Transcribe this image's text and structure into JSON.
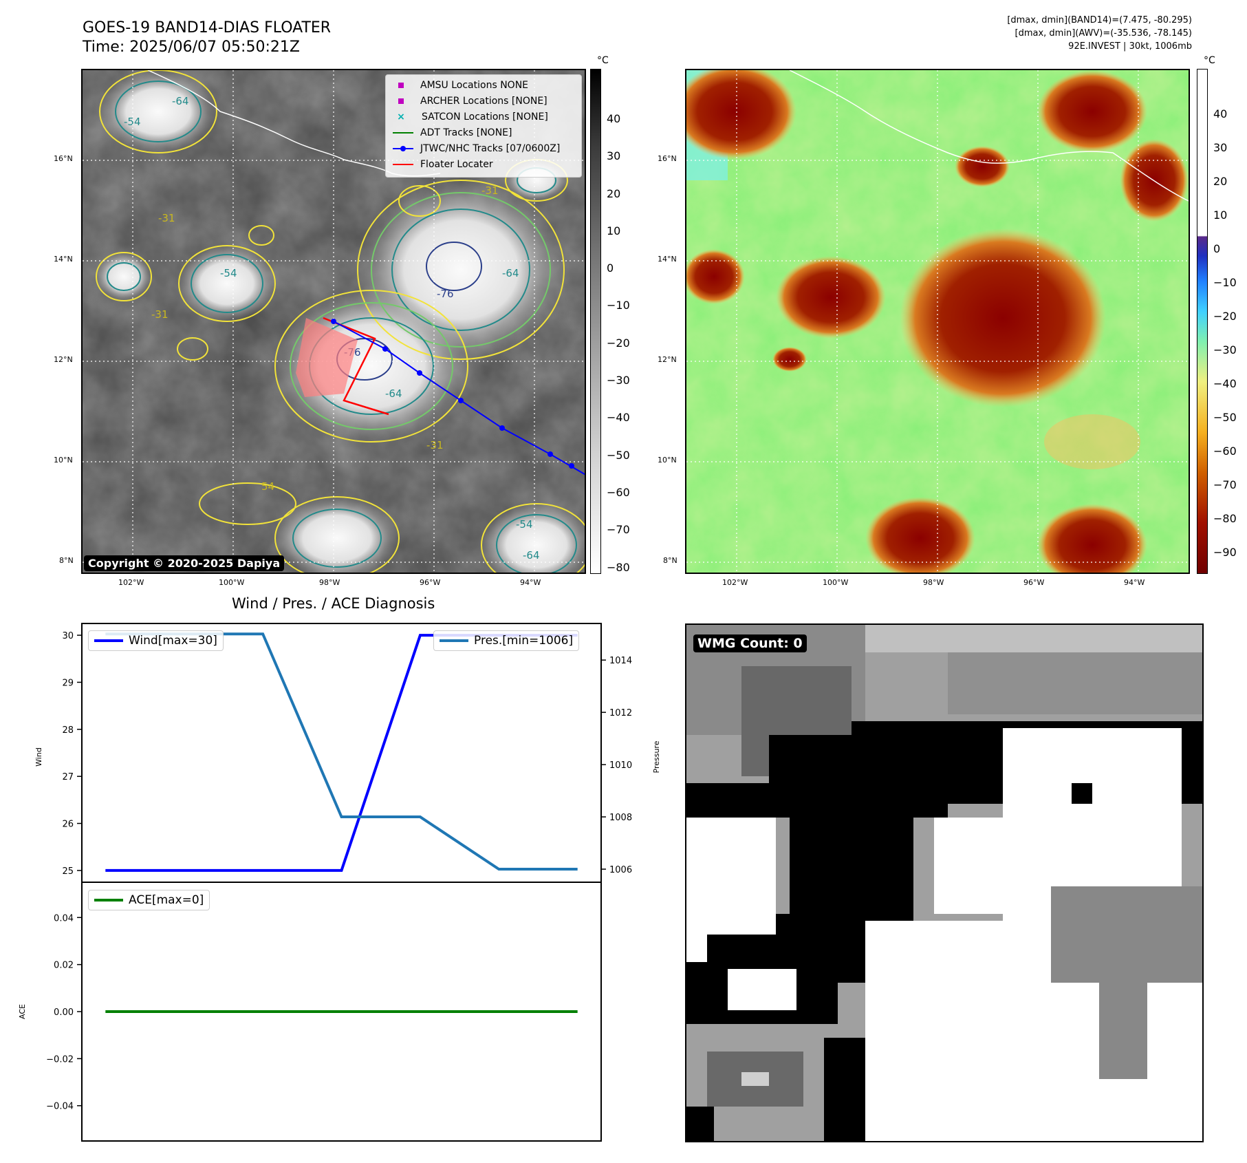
{
  "header": {
    "title_line1": "GOES-19 BAND14-DIAS FLOATER",
    "title_line2": "Time: 2025/06/07 05:50:21Z",
    "right_line1": "[dmax, dmin](BAND14)=(7.475, -80.295)",
    "right_line2": "[dmax, dmin](AWV)=(-35.536, -78.145)",
    "right_line3": "92E.INVEST | 30kt, 1006mb"
  },
  "map": {
    "lat_labels": [
      "16°N",
      "14°N",
      "12°N",
      "10°N",
      "8°N"
    ],
    "lon_labels": [
      "102°W",
      "100°W",
      "98°W",
      "96°W",
      "94°W"
    ],
    "copyright": "Copyright © 2020-2025 Dapiya",
    "contour_labels": [
      "-54",
      "-64",
      "-31",
      "-54",
      "-64",
      "-76",
      "-76",
      "-31",
      "-64",
      "-54",
      "-64",
      "-31",
      "-31",
      "54"
    ],
    "legend": [
      {
        "label": "AMSU Locations NONE",
        "color": "#c000c0",
        "symbol": "square"
      },
      {
        "label": "ARCHER Locations [NONE]",
        "color": "#c000c0",
        "symbol": "square"
      },
      {
        "label": "SATCON Locations [NONE]",
        "color": "#00b0b0",
        "symbol": "x"
      },
      {
        "label": "ADT Tracks [NONE]",
        "color": "#008000",
        "symbol": "line"
      },
      {
        "label": "JTWC/NHC Tracks [07/0600Z]",
        "color": "#0000ff",
        "symbol": "line-dot"
      },
      {
        "label": "Floater Locater",
        "color": "#ff0000",
        "symbol": "line"
      }
    ],
    "colorbar1": {
      "unit": "°C",
      "ticks": [
        "40",
        "30",
        "20",
        "10",
        "0",
        "−10",
        "−20",
        "−30",
        "−40",
        "−50",
        "−60",
        "−70",
        "−80"
      ]
    },
    "colorbar2": {
      "unit": "°C",
      "ticks": [
        "40",
        "30",
        "20",
        "10",
        "0",
        "−10",
        "−20",
        "−30",
        "−40",
        "−50",
        "−60",
        "−70",
        "−80",
        "−90"
      ]
    }
  },
  "diag": {
    "title": "Wind / Pres. / ACE Diagnosis",
    "wind_ylabel": "Wind",
    "pres_ylabel": "Pressure",
    "ace_ylabel": "ACE",
    "wind_ticks": [
      "30",
      "29",
      "28",
      "27",
      "26",
      "25"
    ],
    "pres_ticks": [
      "1014",
      "1012",
      "1010",
      "1008",
      "1006"
    ],
    "ace_ticks": [
      "0.04",
      "0.02",
      "0.00",
      "−0.02",
      "−0.04"
    ],
    "wind_legend": "Wind[max=30]",
    "pres_legend": "Pres.[min=1006]",
    "ace_legend": "ACE[max=0]",
    "colors": {
      "wind": "#0000ff",
      "pres": "#1f77b4",
      "ace": "#008000"
    }
  },
  "wmg": {
    "label": "WMG Count: 0"
  },
  "chart_data": [
    {
      "type": "line",
      "title": "Wind / Pres. / ACE Diagnosis",
      "x": [
        0,
        1,
        2,
        3,
        4,
        5,
        6
      ],
      "series": [
        {
          "name": "Wind[max=30]",
          "axis": "left",
          "values": [
            25,
            25,
            25,
            25,
            30,
            30,
            30
          ]
        },
        {
          "name": "Pres.[min=1006]",
          "axis": "right",
          "values": [
            1015,
            1015,
            1015,
            1008,
            1008,
            1006,
            1006
          ]
        }
      ],
      "ylabel": "Wind",
      "y2label": "Pressure",
      "ylim": [
        24.75,
        30.25
      ],
      "y2lim": [
        1005.5,
        1015.4
      ],
      "grid": false,
      "legend": [
        "upper left",
        "upper right"
      ]
    },
    {
      "type": "line",
      "x": [
        0,
        1,
        2,
        3,
        4,
        5,
        6
      ],
      "series": [
        {
          "name": "ACE[max=0]",
          "values": [
            0,
            0,
            0,
            0,
            0,
            0,
            0
          ]
        }
      ],
      "ylabel": "ACE",
      "ylim": [
        -0.055,
        0.055
      ],
      "grid": false,
      "legend": "upper left"
    }
  ]
}
